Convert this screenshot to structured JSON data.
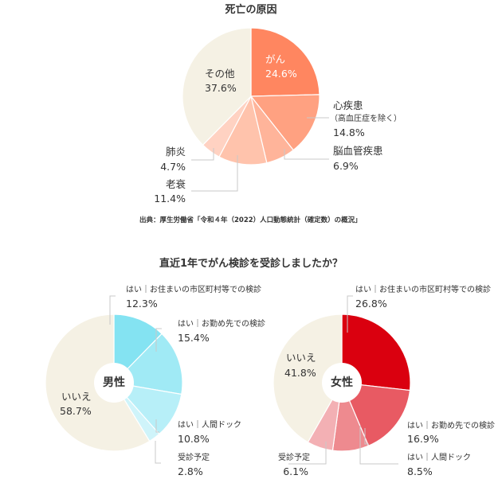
{
  "chart_data": [
    {
      "type": "pie",
      "title": "死亡の原因",
      "source": "出典：厚生労働省「令和４年（2022）人口動態統計（確定数）の概況」",
      "slices": [
        {
          "label": "がん",
          "value": 24.6,
          "display": "24.6%",
          "color": "#FF8660"
        },
        {
          "label": "心疾患",
          "sublabel": "（高血圧症を除く）",
          "value": 14.8,
          "display": "14.8%",
          "color": "#FFA181"
        },
        {
          "label": "脳血管疾患",
          "value": 6.9,
          "display": "6.9%",
          "color": "#FFB49A"
        },
        {
          "label": "老衰",
          "value": 11.4,
          "display": "11.4%",
          "color": "#FFC3AC"
        },
        {
          "label": "肺炎",
          "value": 4.7,
          "display": "4.7%",
          "color": "#FFD2C2"
        },
        {
          "label": "その他",
          "value": 37.6,
          "display": "37.6%",
          "color": "#F5F1E4"
        }
      ]
    },
    {
      "type": "pie",
      "title": "直近1年でがん検診を受診しましたか？",
      "center_label": "男性",
      "slices": [
        {
          "label": "はい｜お住まいの市区町村等での検診",
          "value": 12.3,
          "display": "12.3%",
          "color": "#84E3F2"
        },
        {
          "label": "はい｜お勤め先での検診",
          "value": 15.4,
          "display": "15.4%",
          "color": "#A0EAF5"
        },
        {
          "label": "はい｜人間ドック",
          "value": 10.8,
          "display": "10.8%",
          "color": "#B7EFF8"
        },
        {
          "label": "受診予定",
          "value": 2.8,
          "display": "2.8%",
          "color": "#CFF4FA"
        },
        {
          "label": "いいえ",
          "value": 58.7,
          "display": "58.7%",
          "color": "#F5F1E4"
        }
      ]
    },
    {
      "type": "pie",
      "title": "直近1年でがん検診を受診しましたか？",
      "center_label": "女性",
      "slices": [
        {
          "label": "はい｜お住まいの市区町村等での検診",
          "value": 26.8,
          "display": "26.8%",
          "color": "#DA000F"
        },
        {
          "label": "はい｜お勤め先での検診",
          "value": 16.9,
          "display": "16.9%",
          "color": "#E85A63"
        },
        {
          "label": "はい｜人間ドック",
          "value": 8.5,
          "display": "8.5%",
          "color": "#EE8A8F"
        },
        {
          "label": "受診予定",
          "value": 6.1,
          "display": "6.1%",
          "color": "#F3B0B4"
        },
        {
          "label": "いいえ",
          "value": 41.8,
          "display": "41.8%",
          "color": "#F5F1E4"
        }
      ]
    }
  ]
}
